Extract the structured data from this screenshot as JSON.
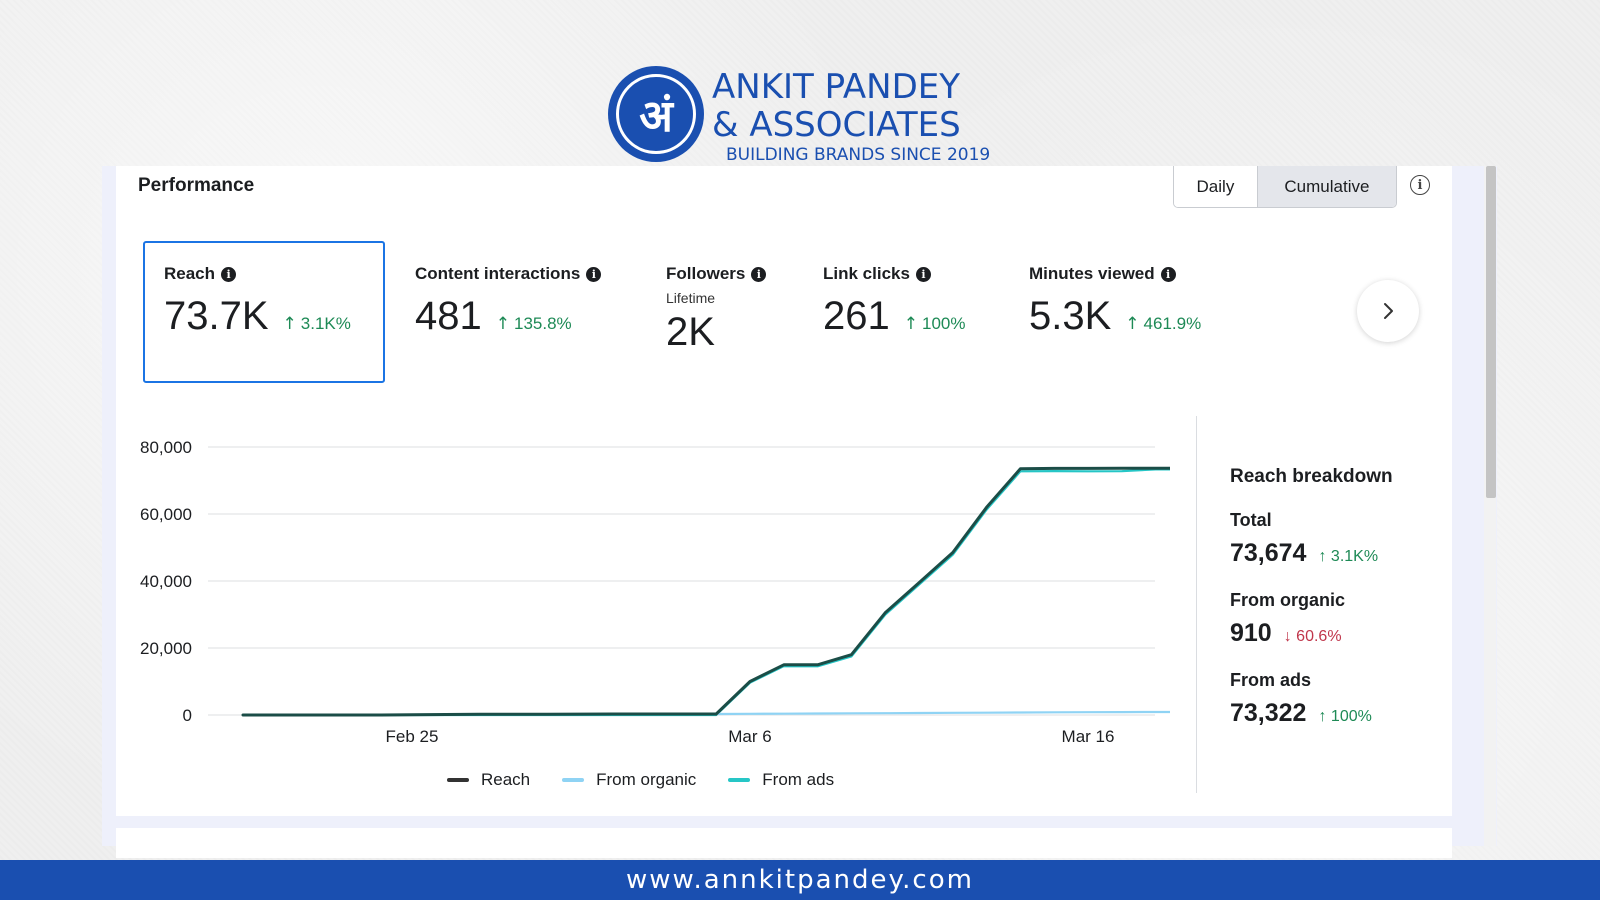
{
  "brand": {
    "logo_glyph": "अं",
    "name_line1": "ANKIT PANDEY",
    "name_line2": "& ASSOCIATES",
    "tagline": "BUILDING BRANDS SINCE 2019",
    "color": "#1a4fb0"
  },
  "header": {
    "title": "Performance",
    "toggle": {
      "daily": "Daily",
      "cumulative": "Cumulative",
      "selected": "Cumulative"
    },
    "info_icon": "info-icon"
  },
  "metrics": [
    {
      "label": "Reach",
      "value": "73.7K",
      "change": "3.1K%",
      "direction": "up",
      "selected": true
    },
    {
      "label": "Content interactions",
      "value": "481",
      "change": "135.8%",
      "direction": "up"
    },
    {
      "label": "Followers",
      "sublabel": "Lifetime",
      "value": "2K"
    },
    {
      "label": "Link clicks",
      "value": "261",
      "change": "100%",
      "direction": "up"
    },
    {
      "label": "Minutes viewed",
      "value": "5.3K",
      "change": "461.9%",
      "direction": "up"
    }
  ],
  "arrows": {
    "up": "↑",
    "down": "↓"
  },
  "chart_data": {
    "type": "line",
    "title": "",
    "xlabel": "",
    "ylabel": "",
    "x": [
      "Feb 20",
      "Feb 21",
      "Feb 22",
      "Feb 23",
      "Feb 24",
      "Feb 25",
      "Feb 26",
      "Feb 27",
      "Feb 28",
      "Feb 29",
      "Mar 1",
      "Mar 2",
      "Mar 3",
      "Mar 4",
      "Mar 5",
      "Mar 6",
      "Mar 7",
      "Mar 8",
      "Mar 9",
      "Mar 10",
      "Mar 11",
      "Mar 12",
      "Mar 13",
      "Mar 14",
      "Mar 15",
      "Mar 16",
      "Mar 17",
      "Mar 18",
      "Mar 19"
    ],
    "x_tick_labels": [
      "Feb 25",
      "Mar 6",
      "Mar 16"
    ],
    "y_ticks": [
      "0",
      "20,000",
      "40,000",
      "60,000",
      "80,000"
    ],
    "ylim": [
      0,
      80000
    ],
    "grid": true,
    "legend_position": "bottom",
    "series": [
      {
        "name": "Reach",
        "color": "#1b4d47",
        "values": [
          0,
          0,
          0,
          0,
          0,
          100,
          150,
          200,
          220,
          250,
          270,
          290,
          300,
          300,
          300,
          10000,
          15000,
          15000,
          18000,
          30500,
          39500,
          48500,
          62000,
          73500,
          73600,
          73600,
          73650,
          73674,
          73674
        ]
      },
      {
        "name": "From organic",
        "color": "#8fd3f4",
        "values": [
          0,
          0,
          0,
          0,
          0,
          100,
          150,
          200,
          220,
          250,
          270,
          290,
          300,
          300,
          300,
          350,
          400,
          450,
          500,
          550,
          600,
          650,
          700,
          750,
          800,
          850,
          880,
          900,
          910
        ]
      },
      {
        "name": "From ads",
        "color": "#26c6c6",
        "values": [
          0,
          0,
          0,
          0,
          0,
          0,
          0,
          0,
          0,
          0,
          0,
          0,
          0,
          0,
          0,
          9650,
          14600,
          14550,
          17500,
          29950,
          38900,
          47850,
          61300,
          72750,
          72800,
          72750,
          72770,
          73322,
          73322
        ]
      }
    ]
  },
  "breakdown": {
    "title": "Reach breakdown",
    "items": [
      {
        "label": "Total",
        "value": "73,674",
        "change": "3.1K%",
        "direction": "up"
      },
      {
        "label": "From organic",
        "value": "910",
        "change": "60.6%",
        "direction": "down"
      },
      {
        "label": "From ads",
        "value": "73,322",
        "change": "100%",
        "direction": "up"
      }
    ]
  },
  "colors": {
    "up": "#1e8a56",
    "down": "#c0364b",
    "accent": "#1b74e4",
    "footer": "#1a4fb0"
  },
  "icons": {
    "next": "chevron-right-icon"
  },
  "footer": {
    "url": "www.annkitpandey.com"
  }
}
